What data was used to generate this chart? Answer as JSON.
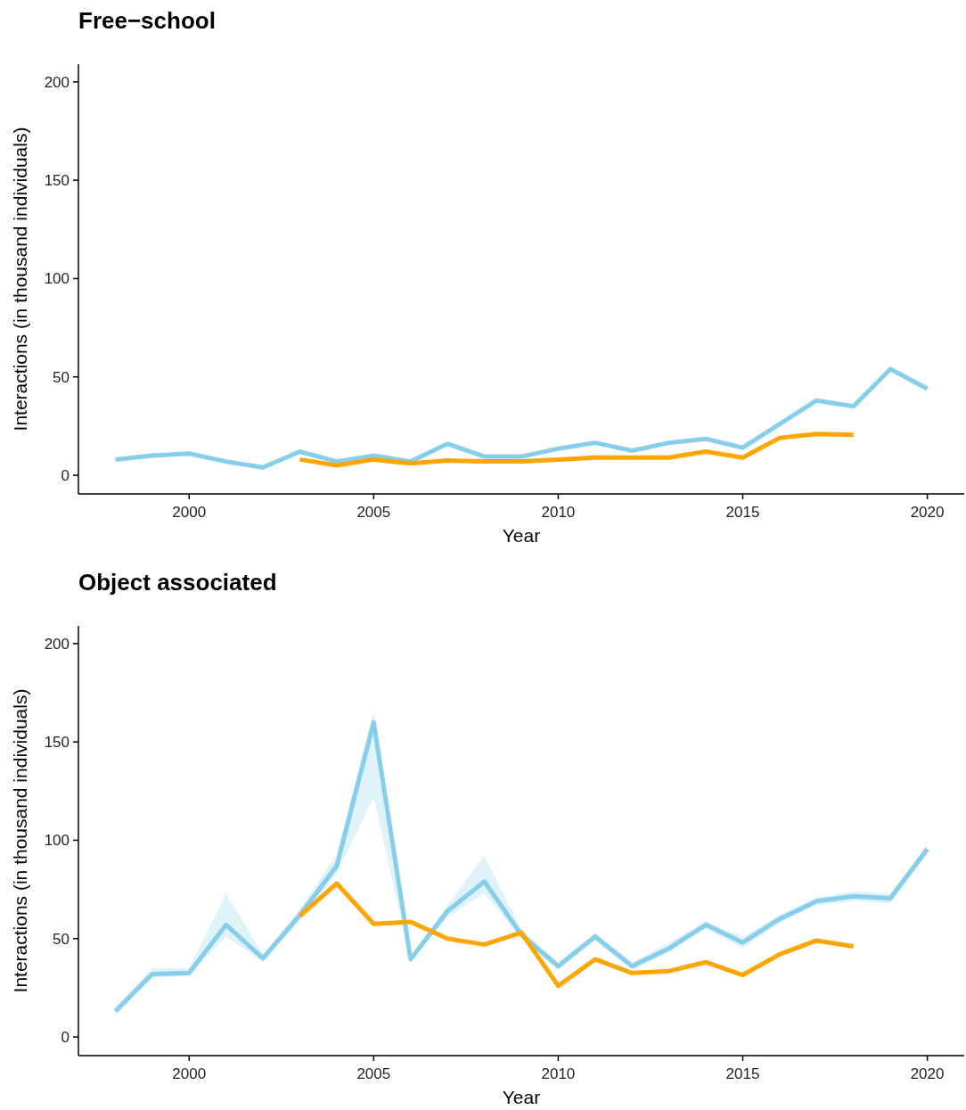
{
  "chart_data": [
    {
      "type": "line",
      "title": "Free−school",
      "xlabel": "Year",
      "ylabel": "Interactions (in thousand individuals)",
      "xlim": [
        1997,
        2021
      ],
      "xticks": [
        2000,
        2005,
        2010,
        2015,
        2020
      ],
      "ylim": [
        -9.5,
        209
      ],
      "yticks": [
        0,
        50,
        100,
        150,
        200
      ],
      "grid": false,
      "line_style": "solid",
      "marker": "none",
      "series": [
        {
          "color": "#87ceeb",
          "x": [
            1998,
            1999,
            2000,
            2001,
            2002,
            2003,
            2004,
            2005,
            2006,
            2007,
            2008,
            2009,
            2010,
            2011,
            2012,
            2013,
            2014,
            2015,
            2016,
            2017,
            2018,
            2019,
            2020
          ],
          "values": [
            8,
            10,
            11,
            7,
            4,
            12,
            7,
            10,
            7,
            16,
            9.5,
            9.5,
            13.5,
            16.5,
            12.5,
            16.5,
            18.5,
            14,
            26,
            38,
            35,
            54,
            44
          ]
        },
        {
          "color": "#ffa500",
          "x": [
            2003,
            2004,
            2005,
            2006,
            2007,
            2008,
            2009,
            2010,
            2011,
            2012,
            2013,
            2014,
            2015,
            2016,
            2017,
            2018
          ],
          "values": [
            8,
            5,
            8,
            6,
            7.5,
            7,
            7,
            8,
            9,
            9,
            9,
            12,
            9,
            19,
            21,
            20.5
          ]
        }
      ]
    },
    {
      "type": "line",
      "title": "Object associated",
      "xlabel": "Year",
      "ylabel": "Interactions (in thousand individuals)",
      "xlim": [
        1997,
        2021
      ],
      "xticks": [
        2000,
        2005,
        2010,
        2015,
        2020
      ],
      "ylim": [
        -9.5,
        209
      ],
      "yticks": [
        0,
        50,
        100,
        150,
        200
      ],
      "grid": false,
      "line_style": "solid",
      "marker": "none",
      "series": [
        {
          "color": "#87ceeb",
          "x": [
            1998,
            1999,
            2000,
            2001,
            2002,
            2003,
            2004,
            2005,
            2006,
            2007,
            2008,
            2009,
            2010,
            2011,
            2012,
            2013,
            2014,
            2015,
            2016,
            2017,
            2018,
            2019,
            2020
          ],
          "values": [
            13,
            32,
            32.5,
            57,
            40,
            62,
            87,
            160,
            39.5,
            64,
            79,
            52,
            36,
            51,
            36,
            45,
            57,
            48,
            60,
            69,
            71.5,
            70.5,
            95.5
          ],
          "lower": [
            11,
            30,
            31,
            51,
            38,
            59,
            83,
            122,
            38,
            61,
            73,
            50,
            34,
            49,
            34,
            43,
            55,
            45,
            58,
            67,
            69,
            68,
            93
          ],
          "upper": [
            15,
            35,
            35,
            73,
            42,
            65,
            93,
            166,
            41,
            67,
            92,
            55,
            38,
            53,
            38,
            48,
            59,
            51,
            62,
            71,
            74,
            73,
            98
          ]
        },
        {
          "color": "#ffa500",
          "x": [
            2003,
            2004,
            2005,
            2006,
            2007,
            2008,
            2009,
            2010,
            2011,
            2012,
            2013,
            2014,
            2015,
            2016,
            2017,
            2018
          ],
          "values": [
            61.5,
            78,
            57.5,
            58.5,
            50,
            47,
            53,
            26,
            39.5,
            32.5,
            33.5,
            38,
            31.5,
            42,
            49,
            46
          ]
        }
      ]
    }
  ]
}
